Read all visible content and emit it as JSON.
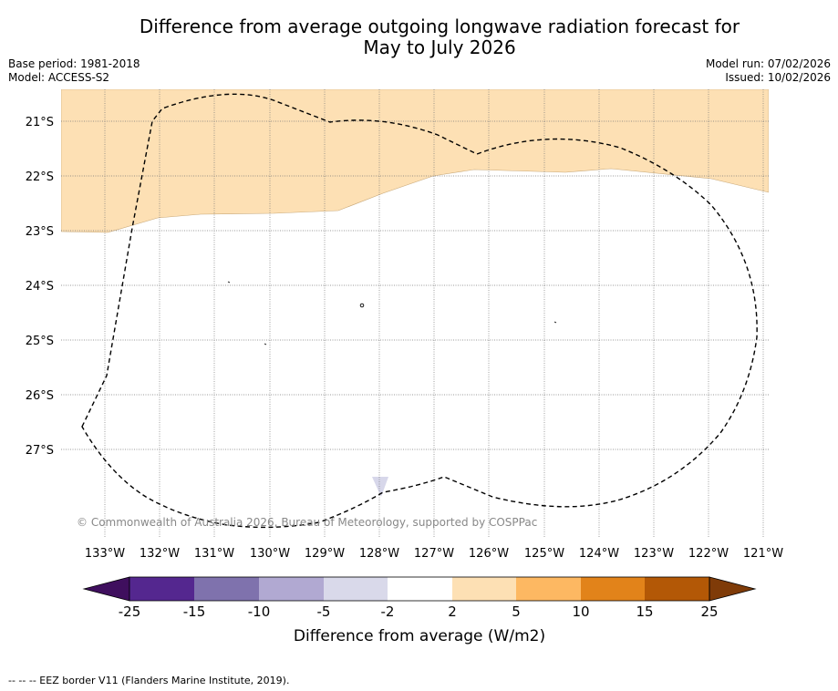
{
  "title": {
    "line1": "Difference from average outgoing longwave radiation forecast for",
    "line2": "May to July 2026"
  },
  "meta": {
    "base_period": "Base period: 1981-2018",
    "model": "Model: ACCESS-S2",
    "model_run": "Model run: 07/02/2026",
    "issued": "Issued: 10/02/2026"
  },
  "map": {
    "lat_labels": [
      "21°S",
      "22°S",
      "23°S",
      "24°S",
      "25°S",
      "26°S",
      "27°S"
    ],
    "lon_labels": [
      "133°W",
      "132°W",
      "131°W",
      "130°W",
      "129°W",
      "128°W",
      "127°W",
      "126°W",
      "125°W",
      "124°W",
      "123°W",
      "122°W",
      "121°W"
    ],
    "copyright": "© Commonwealth of Australia 2026, Bureau of Meteorology, supported by COSPPac",
    "anomaly_fill_color": "#fde0b4",
    "negative_blip_color": "#d7d7ea",
    "eez_line_color": "#000000"
  },
  "colorbar": {
    "ticks": [
      "-25",
      "-15",
      "-10",
      "-5",
      "-2",
      "2",
      "5",
      "10",
      "15",
      "25"
    ],
    "colors": [
      "#3f0f5e",
      "#54278f",
      "#7f72ad",
      "#b1a9d2",
      "#d9d9ea",
      "#ffffff",
      "#fde0b4",
      "#fdb862",
      "#e2831a",
      "#b35806",
      "#7f3b08"
    ],
    "label": "Difference from average (W/m2)"
  },
  "footnote": "--  --  -- EEZ border V11 (Flanders Marine Institute, 2019)."
}
